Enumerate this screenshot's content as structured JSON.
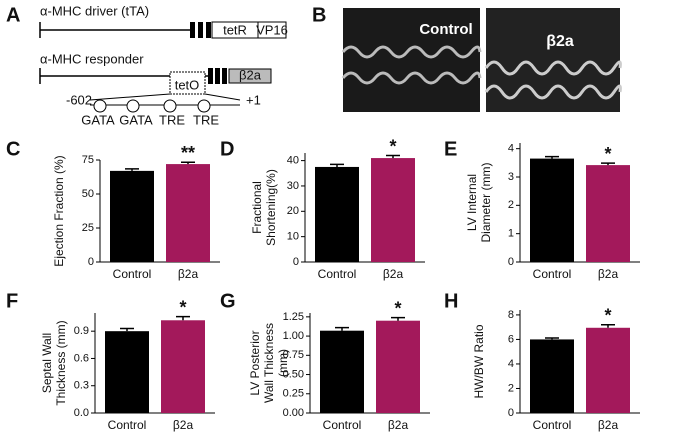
{
  "diagram": {
    "panel": "A",
    "driver": "α-MHC driver (tTA)",
    "tetR": "tetR",
    "vp16": "VP16",
    "responder": "α-MHC responder",
    "teto": "tetO",
    "b2a": "β2a",
    "minus": "-602",
    "plus": "+1",
    "sites": [
      "GATA",
      "GATA",
      "TRE",
      "TRE"
    ]
  },
  "images": {
    "panel": "B",
    "labels": [
      "Control",
      "β2a"
    ]
  },
  "chart_data": [
    {
      "type": "bar",
      "panel": "C",
      "ylabel": [
        "Ejection Fraction (%)"
      ],
      "categories": [
        "Control",
        "β2a"
      ],
      "values": [
        67,
        72
      ],
      "errors": [
        1.5,
        1.3
      ],
      "colors": [
        "#000000",
        "#a3195b"
      ],
      "ylim": [
        0,
        75
      ],
      "yticks": [
        0,
        25,
        50,
        75
      ],
      "annotation": "**"
    },
    {
      "type": "bar",
      "panel": "D",
      "ylabel": [
        "Fractional",
        "Shortening(%)"
      ],
      "categories": [
        "Control",
        "β2a"
      ],
      "values": [
        37.5,
        41
      ],
      "errors": [
        1,
        1
      ],
      "colors": [
        "#000000",
        "#a3195b"
      ],
      "ylim": [
        0,
        43
      ],
      "yticks": [
        0,
        10,
        20,
        30,
        40
      ],
      "annotation": "*"
    },
    {
      "type": "bar",
      "panel": "E",
      "ylabel": [
        "LV Internal",
        "Diameter (mm)"
      ],
      "categories": [
        "Control",
        "β2a"
      ],
      "values": [
        3.65,
        3.42
      ],
      "errors": [
        0.07,
        0.07
      ],
      "colors": [
        "#000000",
        "#a3195b"
      ],
      "ylim": [
        0,
        4.2
      ],
      "yticks": [
        0,
        1,
        2,
        3,
        4
      ],
      "annotation": "*"
    },
    {
      "type": "bar",
      "panel": "F",
      "ylabel": [
        "Septal Wall",
        "Thickness (mm)"
      ],
      "categories": [
        "Control",
        "β2a"
      ],
      "values": [
        0.9,
        1.02
      ],
      "errors": [
        0.03,
        0.04
      ],
      "colors": [
        "#000000",
        "#a3195b"
      ],
      "ylim": [
        0,
        1.1
      ],
      "yticks": [
        {
          "value": 0,
          "label": "0.0"
        },
        0.3,
        0.6,
        0.9
      ],
      "annotation": "*"
    },
    {
      "type": "bar",
      "panel": "G",
      "ylabel": [
        "LV Posterior",
        "Wall Thickness",
        "(mm)"
      ],
      "categories": [
        "Control",
        "β2a"
      ],
      "values": [
        1.07,
        1.2
      ],
      "errors": [
        0.04,
        0.04
      ],
      "colors": [
        "#000000",
        "#a3195b"
      ],
      "ylim": [
        0,
        1.3
      ],
      "yticks": [
        {
          "value": 0,
          "label": "0.00"
        },
        0.25,
        {
          "value": 0.5,
          "label": "0.50"
        },
        0.75,
        {
          "value": 1,
          "label": "1.00"
        },
        1.25
      ],
      "annotation": "*"
    },
    {
      "type": "bar",
      "panel": "H",
      "ylabel": [
        "HW/BW Ratio"
      ],
      "categories": [
        "Control",
        "β2a"
      ],
      "values": [
        6,
        6.95
      ],
      "errors": [
        0.12,
        0.25
      ],
      "colors": [
        "#000000",
        "#a3195b"
      ],
      "ylim": [
        0,
        8.4
      ],
      "yticks": [
        0,
        2,
        4,
        6,
        8
      ],
      "annotation": "*"
    }
  ]
}
